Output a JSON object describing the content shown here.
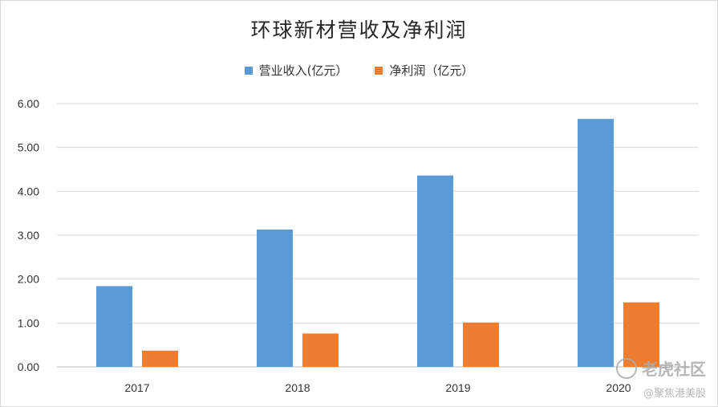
{
  "chart_data": {
    "type": "bar",
    "title": "环球新材营收及净利润",
    "categories": [
      "2017",
      "2018",
      "2019",
      "2020"
    ],
    "series": [
      {
        "name": "营业收入(亿元）",
        "color": "#5B9BD5",
        "values": [
          1.84,
          3.13,
          4.36,
          5.65
        ]
      },
      {
        "name": "净利润（亿元）",
        "color": "#ED7D31",
        "values": [
          0.37,
          0.76,
          1.01,
          1.47
        ]
      }
    ],
    "yticks": [
      "0.00",
      "1.00",
      "2.00",
      "3.00",
      "4.00",
      "5.00",
      "6.00"
    ],
    "ylim": [
      0,
      6
    ],
    "grid": true,
    "legend_position": "top-center"
  },
  "watermark": {
    "brand": "老虎社区",
    "sub": "@聚焦港美股",
    "icon": "tiger-logo-icon"
  }
}
